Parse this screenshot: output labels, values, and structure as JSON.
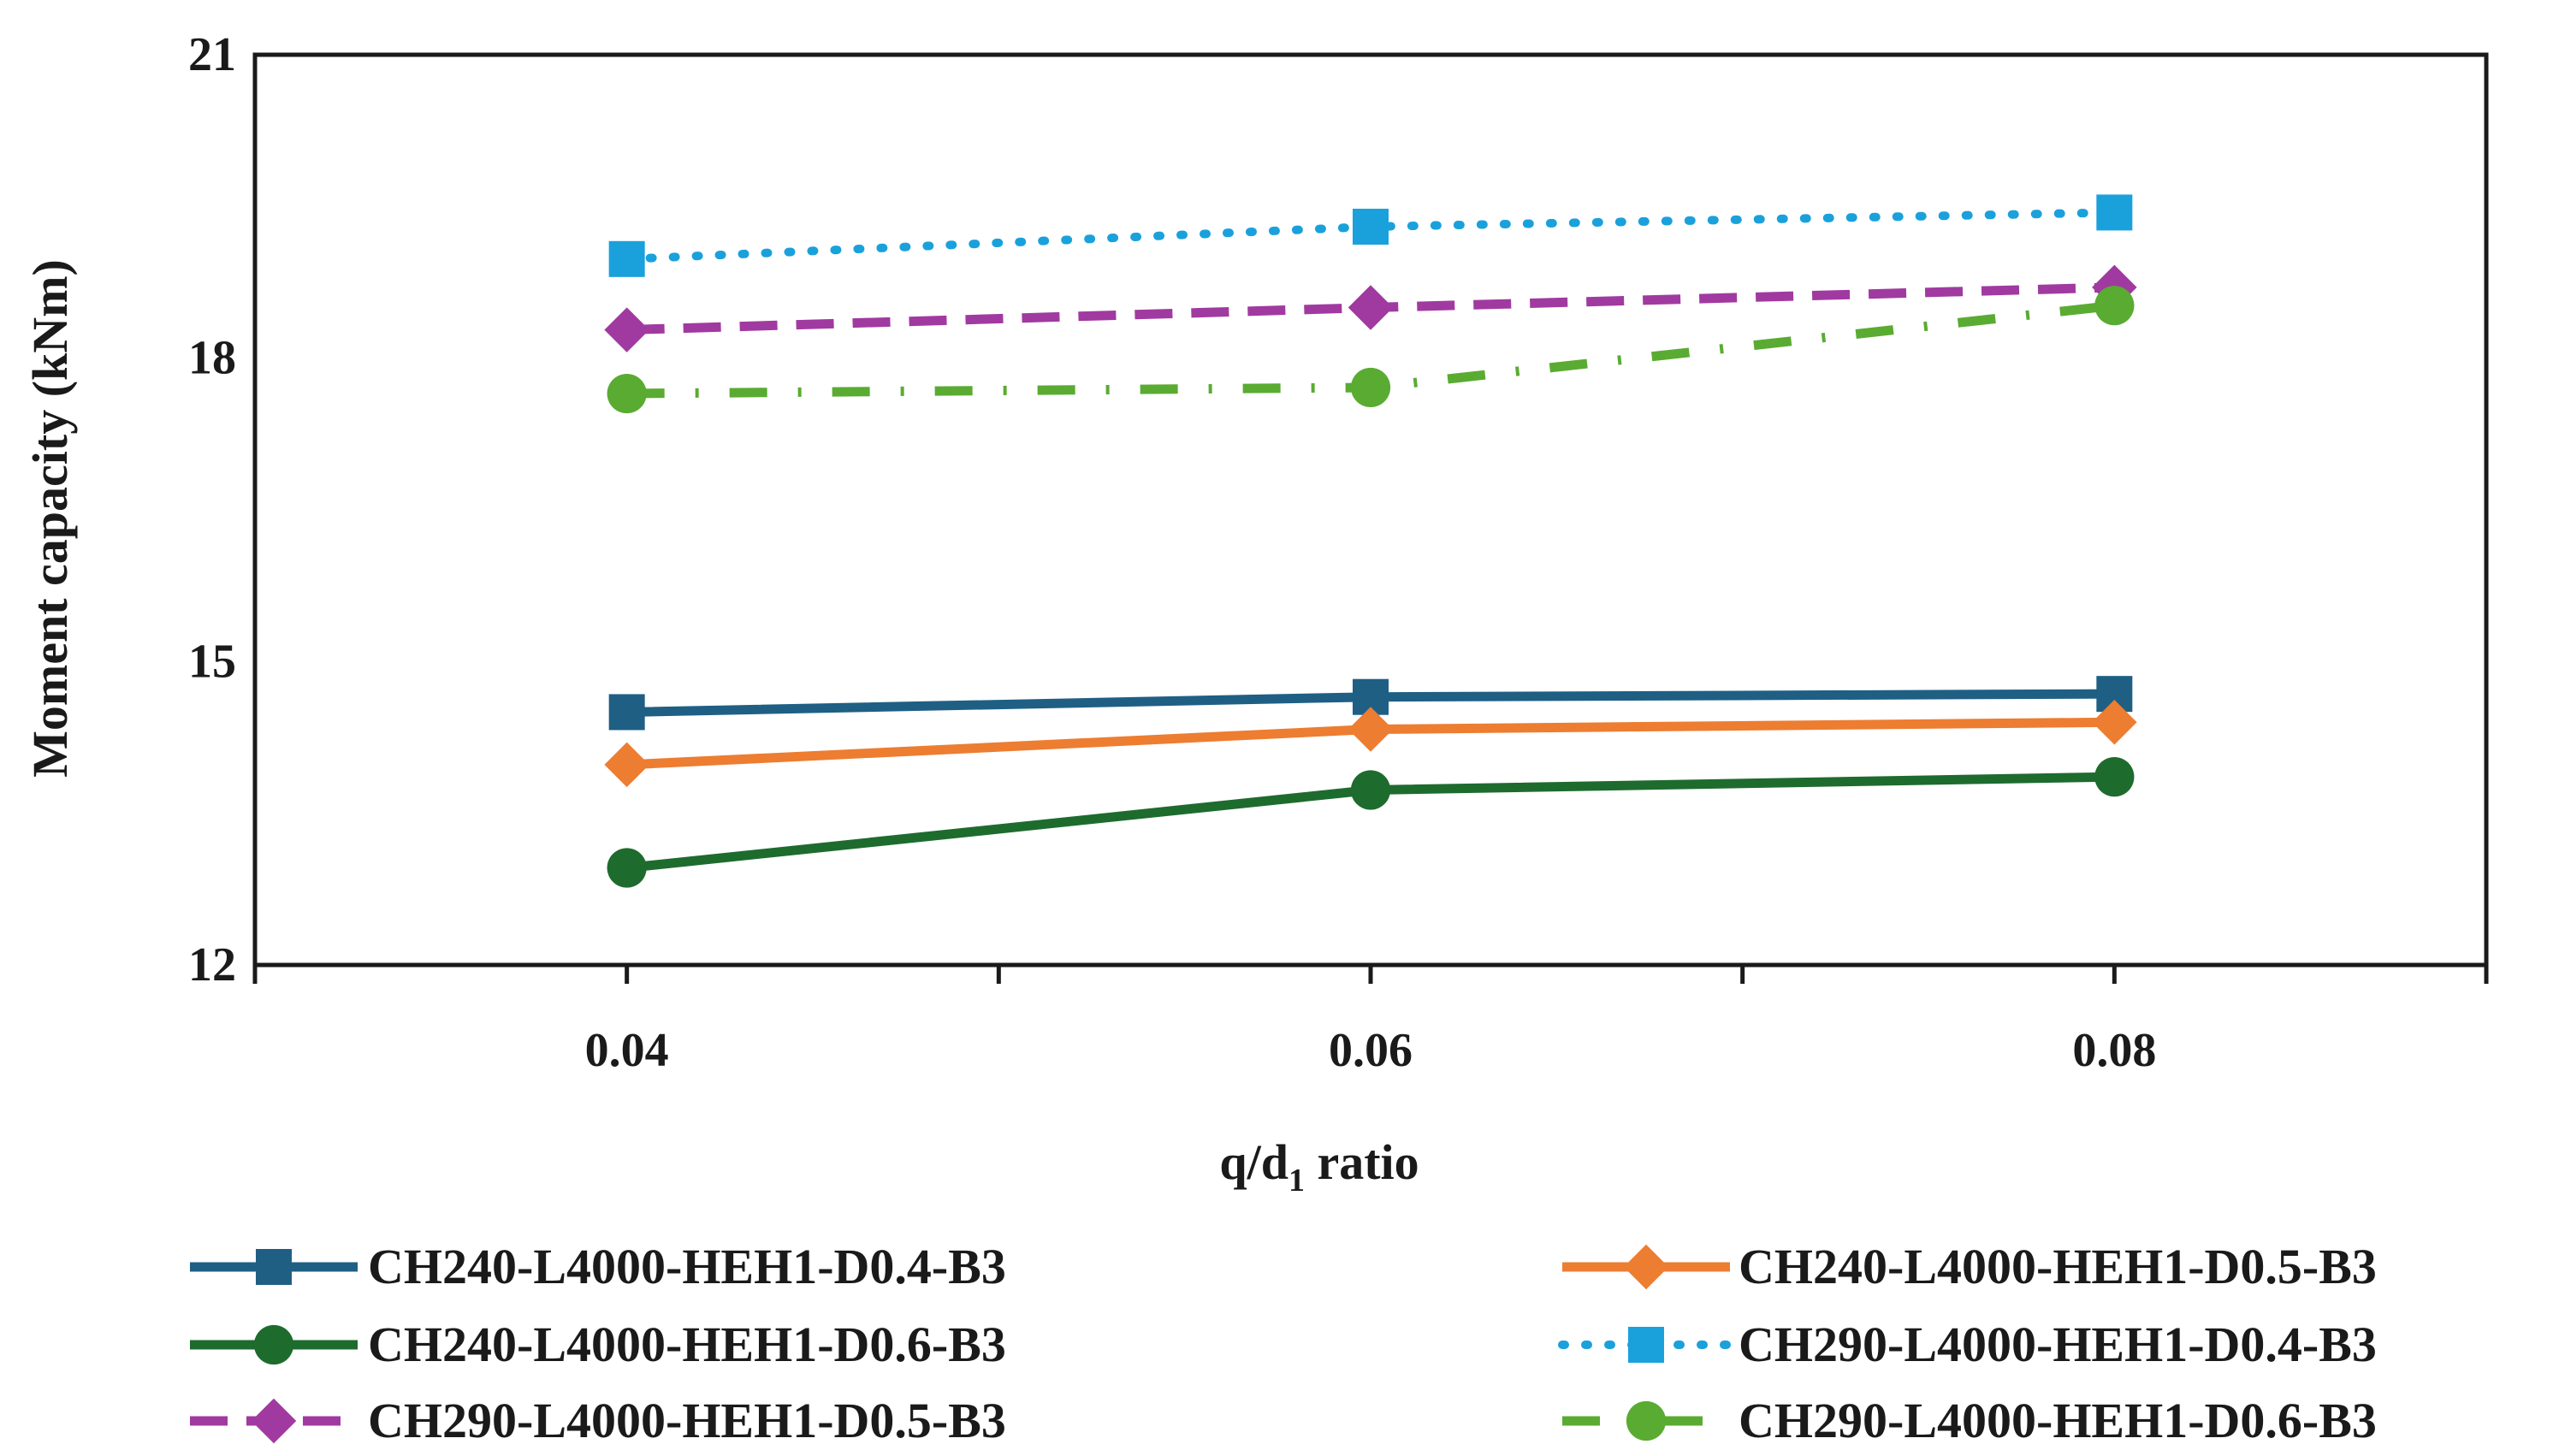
{
  "chart_data": {
    "type": "line",
    "title": "",
    "xlabel": "q/d1 ratio",
    "xlabel_parts": {
      "main": "q/d",
      "subscript": "1",
      "suffix": " ratio"
    },
    "ylabel": "Moment capacity (kNm)",
    "x": [
      0.04,
      0.06,
      0.08
    ],
    "x_tick_labels": [
      "0.04",
      "0.06",
      "0.08"
    ],
    "xlim": [
      0.03,
      0.09
    ],
    "ylim": [
      12,
      21
    ],
    "y_ticks": [
      12,
      15,
      18,
      21
    ],
    "y_tick_labels": [
      "12",
      "15",
      "18",
      "21"
    ],
    "grid": false,
    "legend_position": "bottom",
    "series": [
      {
        "name": "CH240-L4000-HEH1-D0.4-B3",
        "values": [
          14.5,
          14.65,
          14.68
        ],
        "color": "#1f5f84",
        "marker": "square",
        "line": "solid"
      },
      {
        "name": "CH240-L4000-HEH1-D0.5-B3",
        "values": [
          13.98,
          14.33,
          14.4
        ],
        "color": "#ed7d31",
        "marker": "diamond",
        "line": "solid"
      },
      {
        "name": "CH240-L4000-HEH1-D0.6-B3",
        "values": [
          12.96,
          13.73,
          13.86
        ],
        "color": "#1e6b2e",
        "marker": "circle",
        "line": "solid"
      },
      {
        "name": "CH290-L4000-HEH1-D0.4-B3",
        "values": [
          18.98,
          19.3,
          19.44
        ],
        "color": "#1aa1dc",
        "marker": "square",
        "line": "dotted"
      },
      {
        "name": "CH290-L4000-HEH1-D0.5-B3",
        "values": [
          18.28,
          18.5,
          18.7
        ],
        "color": "#a03aa0",
        "marker": "diamond",
        "line": "dashed"
      },
      {
        "name": "CH290-L4000-HEH1-D0.6-B3",
        "values": [
          17.65,
          17.71,
          18.52
        ],
        "color": "#5aab32",
        "marker": "circle",
        "line": "dashdot"
      }
    ]
  }
}
